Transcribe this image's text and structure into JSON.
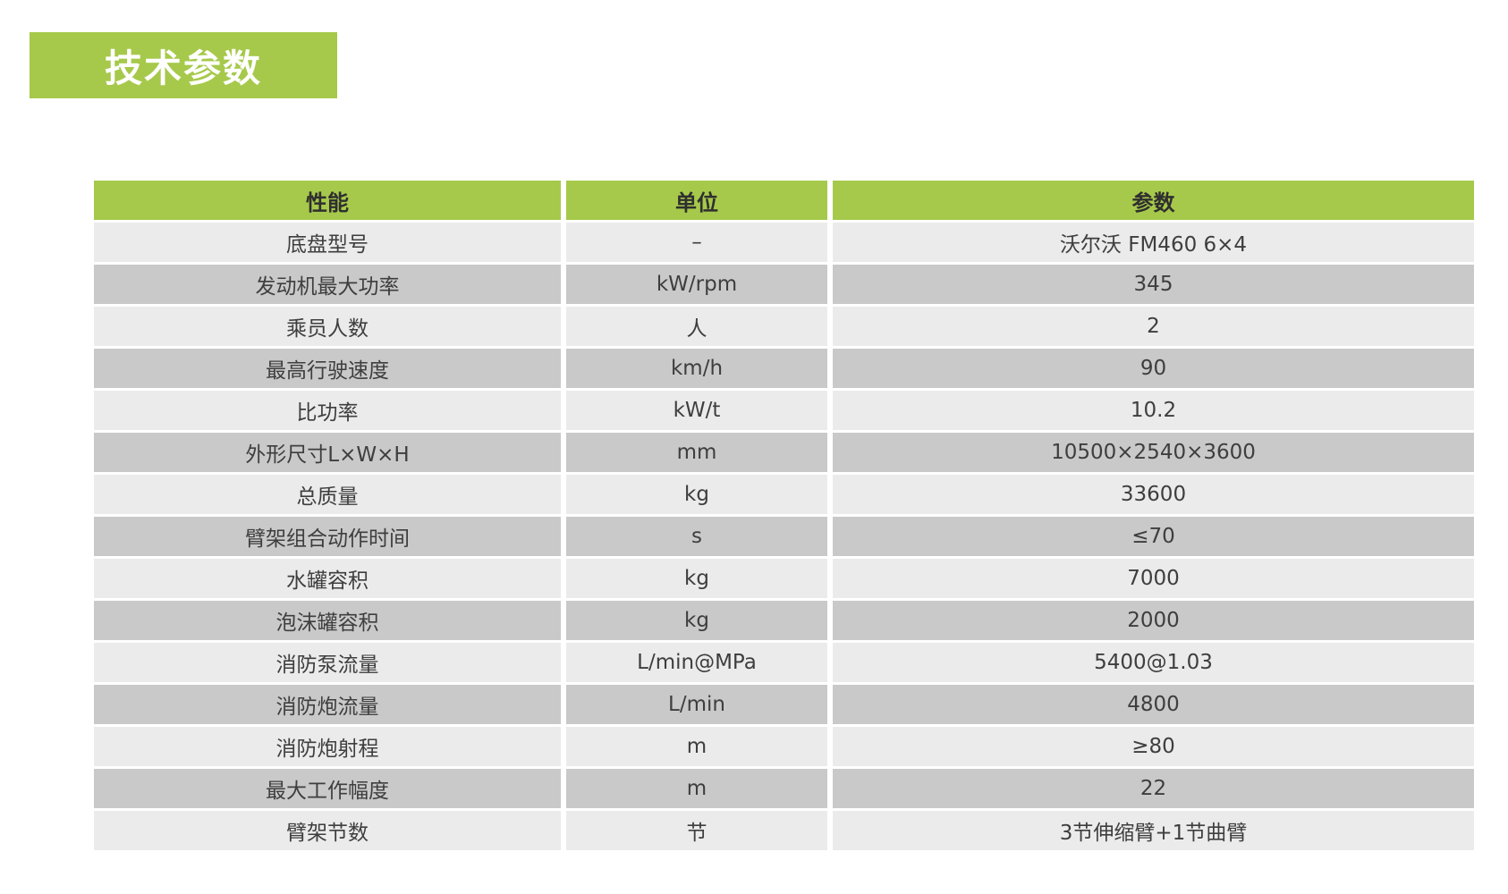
{
  "page": {
    "title": "技术参数"
  },
  "colors": {
    "accent_green": "#a6c94b",
    "row_light": "#ebebeb",
    "row_dark": "#c9c9c9",
    "text": "#3e3e3e",
    "title_text": "#ffffff"
  },
  "table": {
    "columns": [
      "性能",
      "单位",
      "参数"
    ],
    "rows": [
      [
        "底盘型号",
        "–",
        "沃尔沃 FM460 6×4"
      ],
      [
        "发动机最大功率",
        "kW/rpm",
        "345"
      ],
      [
        "乘员人数",
        "人",
        "2"
      ],
      [
        "最高行驶速度",
        "km/h",
        "90"
      ],
      [
        "比功率",
        "kW/t",
        "10.2"
      ],
      [
        "外形尺寸L×W×H",
        "mm",
        "10500×2540×3600"
      ],
      [
        "总质量",
        "kg",
        "33600"
      ],
      [
        "臂架组合动作时间",
        "s",
        "≤70"
      ],
      [
        "水罐容积",
        "kg",
        "7000"
      ],
      [
        "泡沫罐容积",
        "kg",
        "2000"
      ],
      [
        "消防泵流量",
        "L/min@MPa",
        "5400@1.03"
      ],
      [
        "消防炮流量",
        "L/min",
        "4800"
      ],
      [
        "消防炮射程",
        "m",
        "≥80"
      ],
      [
        "最大工作幅度",
        "m",
        "22"
      ],
      [
        "臂架节数",
        "节",
        "3节伸缩臂+1节曲臂"
      ]
    ]
  }
}
